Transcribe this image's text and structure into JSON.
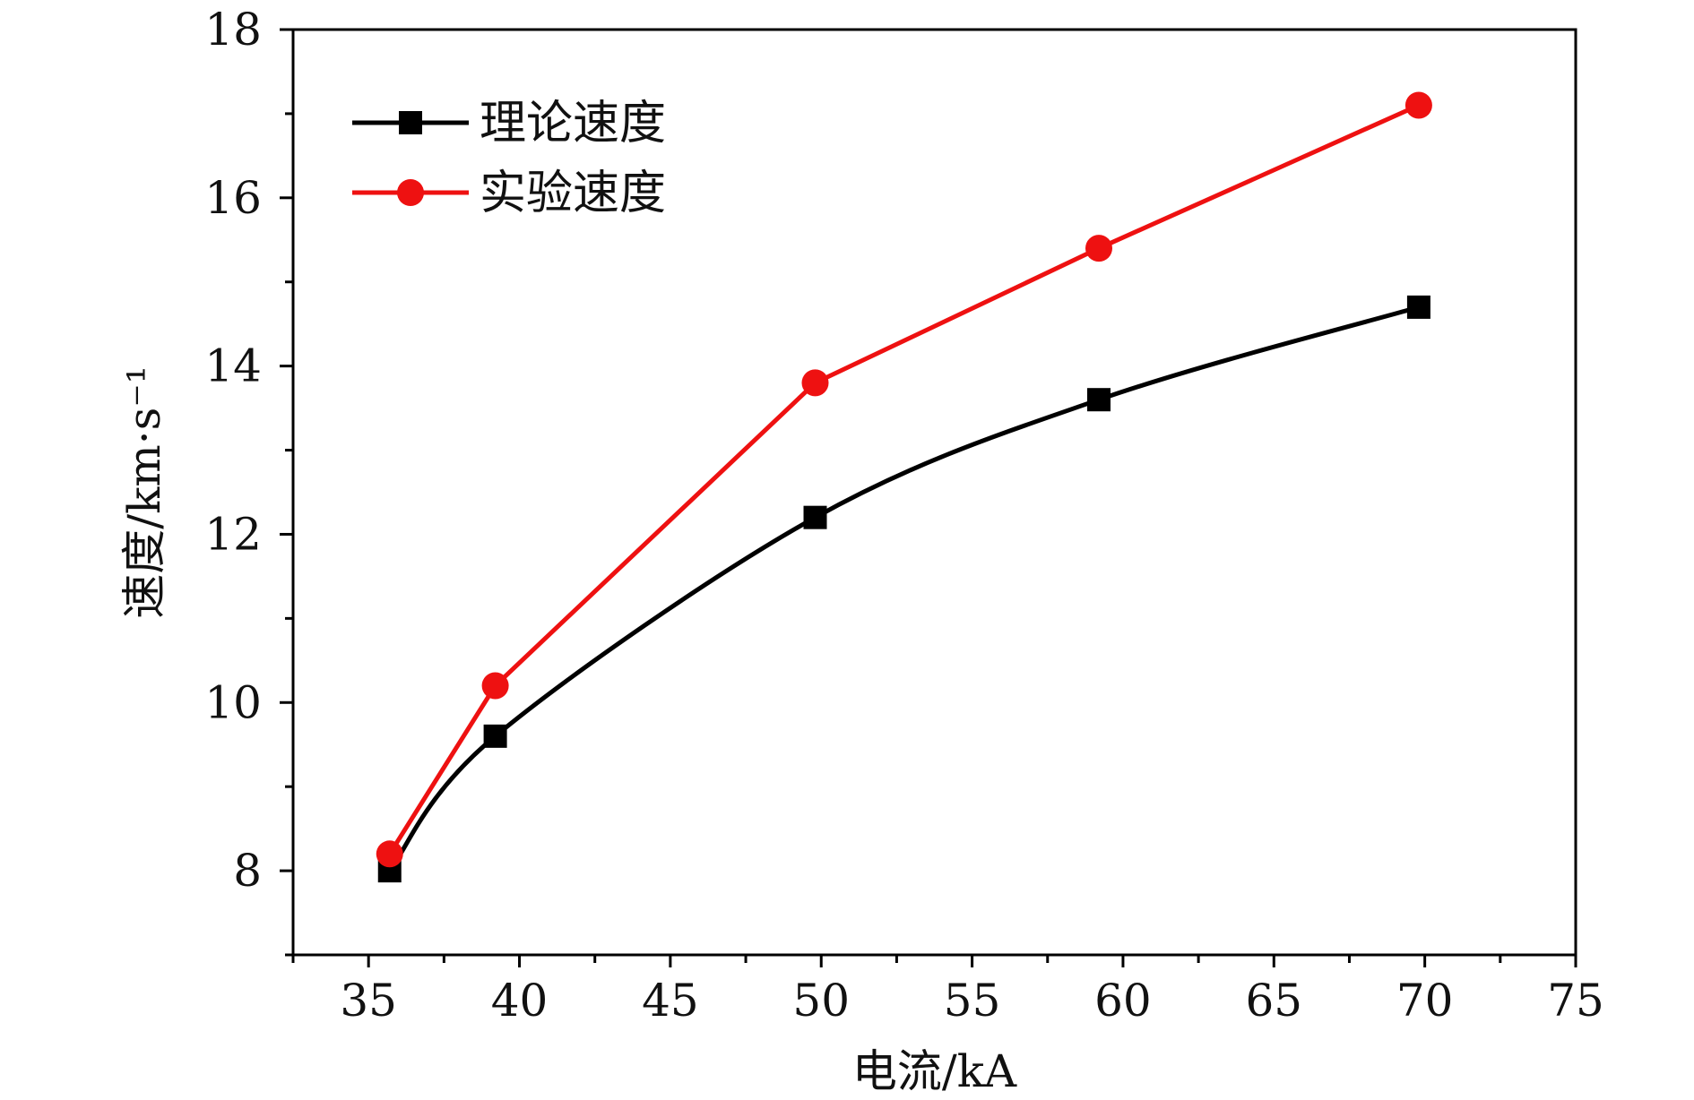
{
  "chart_data": {
    "type": "line",
    "xlabel": "电流/kA",
    "ylabel": "速度/km·s⁻¹",
    "xlim": [
      32.5,
      75
    ],
    "ylim": [
      7,
      18
    ],
    "x_ticks": [
      "35",
      "40",
      "45",
      "50",
      "55",
      "60",
      "65",
      "70",
      "75"
    ],
    "y_ticks": [
      "8",
      "10",
      "12",
      "14",
      "16",
      "18"
    ],
    "legend": "top-left",
    "grid": false,
    "series": [
      {
        "name": "理论速度",
        "color": "#000000",
        "marker": "square",
        "smooth": true,
        "x": [
          35.7,
          39.2,
          49.8,
          59.2,
          69.8
        ],
        "y": [
          8.0,
          9.6,
          12.2,
          13.6,
          14.7
        ]
      },
      {
        "name": "实验速度",
        "color": "#ee1111",
        "marker": "circle",
        "smooth": false,
        "x": [
          35.7,
          39.2,
          49.8,
          59.2,
          69.8
        ],
        "y": [
          8.2,
          10.2,
          13.8,
          15.4,
          17.1
        ]
      }
    ]
  }
}
